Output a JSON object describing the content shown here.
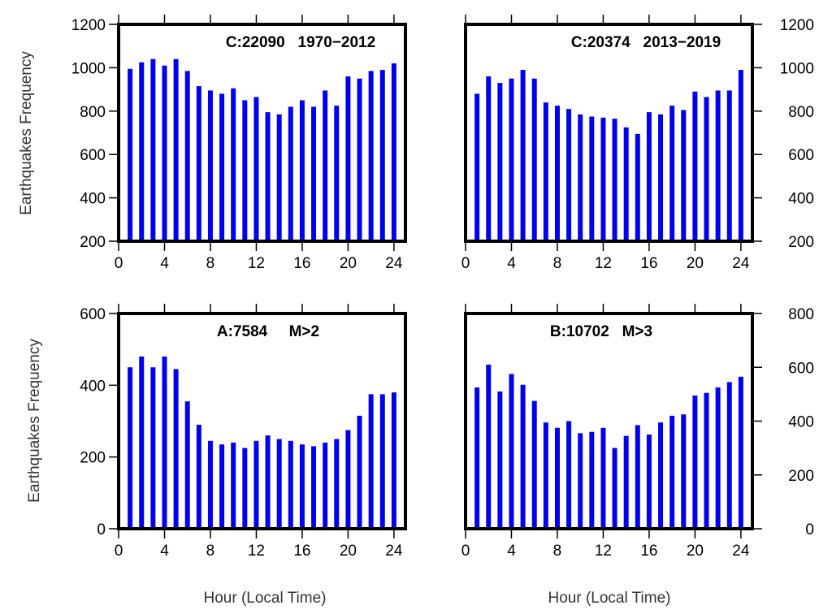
{
  "figure": {
    "xlabel": "Hour (Local Time)",
    "ylabel": "Earthquakes Frequency"
  },
  "chart_data": [
    {
      "type": "bar",
      "title": "C:22090   1970−2012",
      "xlabel": "",
      "ylabel": "Earthquakes Frequency",
      "xlim": [
        0,
        25
      ],
      "ylim": [
        200,
        1200
      ],
      "xticks": [
        0,
        4,
        8,
        12,
        16,
        20,
        24
      ],
      "yticks": [
        200,
        400,
        600,
        800,
        1000,
        1200
      ],
      "x": [
        1,
        2,
        3,
        4,
        5,
        6,
        7,
        8,
        9,
        10,
        11,
        12,
        13,
        14,
        15,
        16,
        17,
        18,
        19,
        20,
        21,
        22,
        23,
        24
      ],
      "values": [
        995,
        1025,
        1040,
        1010,
        1040,
        985,
        915,
        895,
        880,
        905,
        850,
        865,
        795,
        785,
        820,
        850,
        820,
        895,
        825,
        960,
        950,
        985,
        990,
        1020
      ],
      "color": "#0000ee"
    },
    {
      "type": "bar",
      "title": "C:20374   2013−2019",
      "xlabel": "",
      "ylabel": "",
      "xlim": [
        0,
        25
      ],
      "ylim": [
        200,
        1200
      ],
      "xticks": [
        0,
        4,
        8,
        12,
        16,
        20,
        24
      ],
      "yticks": [
        200,
        400,
        600,
        800,
        1000,
        1200
      ],
      "x": [
        1,
        2,
        3,
        4,
        5,
        6,
        7,
        8,
        9,
        10,
        11,
        12,
        13,
        14,
        15,
        16,
        17,
        18,
        19,
        20,
        21,
        22,
        23,
        24
      ],
      "values": [
        880,
        960,
        930,
        950,
        990,
        950,
        840,
        825,
        810,
        785,
        775,
        770,
        765,
        725,
        695,
        795,
        785,
        825,
        805,
        890,
        865,
        895,
        895,
        990
      ],
      "color": "#0000ee"
    },
    {
      "type": "bar",
      "title": "A:7584     M>2",
      "xlabel": "Hour (Local Time)",
      "ylabel": "Earthquakes Frequency",
      "xlim": [
        0,
        25
      ],
      "ylim": [
        0,
        600
      ],
      "xticks": [
        0,
        4,
        8,
        12,
        16,
        20,
        24
      ],
      "yticks": [
        0,
        200,
        400,
        600
      ],
      "x": [
        1,
        2,
        3,
        4,
        5,
        6,
        7,
        8,
        9,
        10,
        11,
        12,
        13,
        14,
        15,
        16,
        17,
        18,
        19,
        20,
        21,
        22,
        23,
        24
      ],
      "values": [
        450,
        480,
        450,
        480,
        445,
        355,
        290,
        245,
        235,
        240,
        225,
        245,
        260,
        250,
        245,
        235,
        230,
        240,
        250,
        275,
        315,
        375,
        375,
        380
      ],
      "color": "#0000ee"
    },
    {
      "type": "bar",
      "title": "B:10702   M>3",
      "xlabel": "Hour (Local Time)",
      "ylabel": "",
      "xlim": [
        0,
        25
      ],
      "ylim": [
        0,
        800
      ],
      "xticks": [
        0,
        4,
        8,
        12,
        16,
        20,
        24
      ],
      "yticks": [
        0,
        200,
        400,
        600,
        800
      ],
      "x": [
        1,
        2,
        3,
        4,
        5,
        6,
        7,
        8,
        9,
        10,
        11,
        12,
        13,
        14,
        15,
        16,
        17,
        18,
        19,
        20,
        21,
        22,
        23,
        24
      ],
      "values": [
        525,
        610,
        510,
        575,
        535,
        475,
        395,
        375,
        400,
        355,
        360,
        375,
        300,
        345,
        385,
        350,
        395,
        420,
        425,
        495,
        505,
        525,
        545,
        565
      ],
      "color": "#0000ee"
    }
  ]
}
